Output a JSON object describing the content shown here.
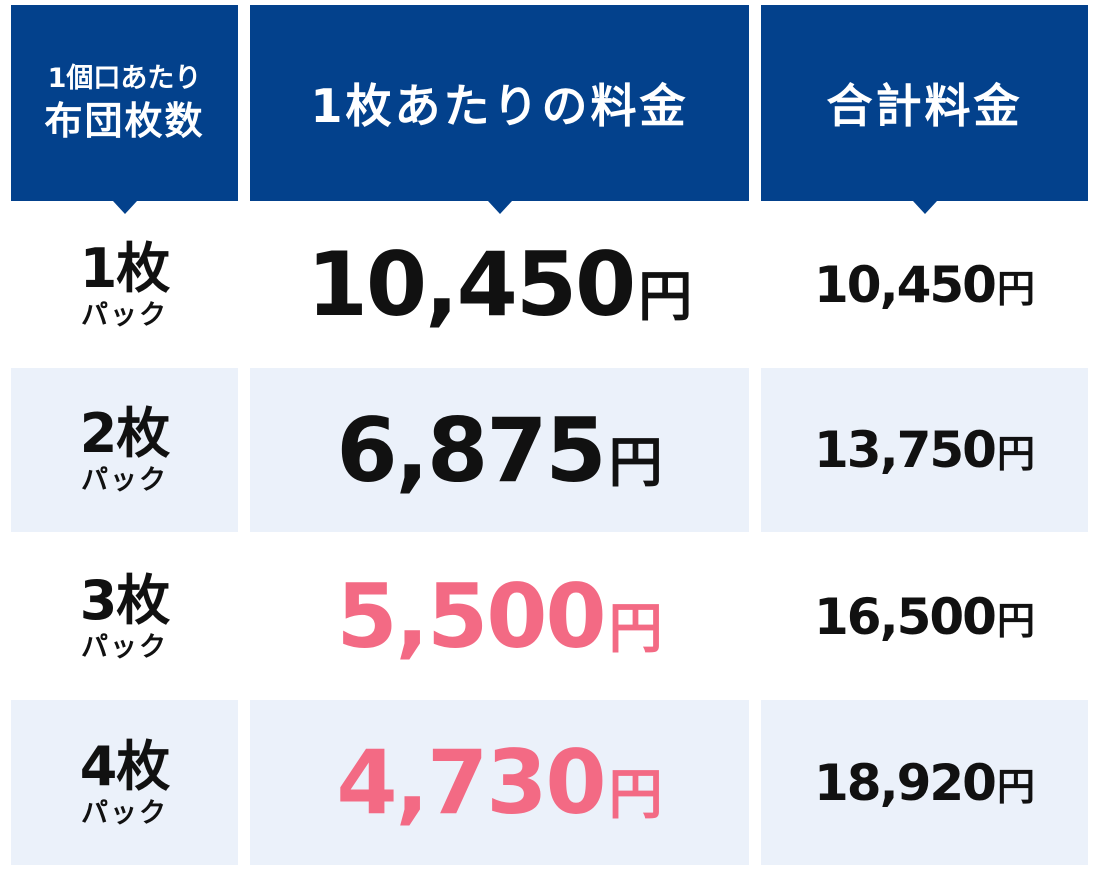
{
  "header": {
    "col_count_line1": "1個口あたり",
    "col_count_line2": "布団枚数",
    "col_unit_price": "1枚あたりの料金",
    "col_total": "合計料金"
  },
  "yen_symbol": "円",
  "rows": [
    {
      "count": "1枚",
      "pack": "パック",
      "unit_price": "10,450",
      "total": "10,450"
    },
    {
      "count": "2枚",
      "pack": "パック",
      "unit_price": "6,875",
      "total": "13,750"
    },
    {
      "count": "3枚",
      "pack": "パック",
      "unit_price": "5,500",
      "total": "16,500"
    },
    {
      "count": "4枚",
      "pack": "パック",
      "unit_price": "4,730",
      "total": "18,920"
    }
  ],
  "colors": {
    "header_bg": "#03418c",
    "row_shade": "#ebf1fa",
    "highlight_price": "#f36a84",
    "text": "#111111"
  }
}
